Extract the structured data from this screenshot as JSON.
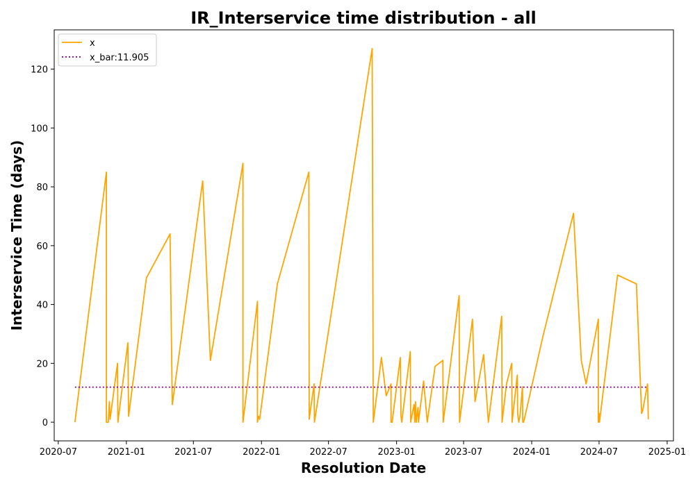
{
  "chart_data": {
    "type": "line",
    "title": "IR_Interservice time distribution - all",
    "xlabel": "Resolution Date",
    "ylabel": "Interservice Time (days)",
    "xlim": [
      "2020-06-20",
      "2025-01-18"
    ],
    "ylim": [
      -6.35,
      133.35
    ],
    "x_ticks": [
      "2020-07",
      "2021-01",
      "2021-07",
      "2022-01",
      "2022-07",
      "2023-01",
      "2023-07",
      "2024-01",
      "2024-07",
      "2025-01"
    ],
    "y_ticks": [
      0,
      20,
      40,
      60,
      80,
      100,
      120
    ],
    "grid": false,
    "legend": "upper left",
    "colors": {
      "x": "#FFA500",
      "x_bar": "#800080"
    },
    "series": [
      {
        "name": "x",
        "style": "solid",
        "points": [
          [
            "2020-08-15",
            0
          ],
          [
            "2020-11-08",
            85
          ],
          [
            "2020-11-08",
            0
          ],
          [
            "2020-11-13",
            0
          ],
          [
            "2020-11-16",
            7
          ],
          [
            "2020-11-18",
            1
          ],
          [
            "2020-12-08",
            20
          ],
          [
            "2020-12-09",
            0
          ],
          [
            "2021-01-05",
            27
          ],
          [
            "2021-01-07",
            2
          ],
          [
            "2021-02-24",
            49
          ],
          [
            "2021-04-29",
            64
          ],
          [
            "2021-05-05",
            6
          ],
          [
            "2021-07-26",
            82
          ],
          [
            "2021-08-16",
            21
          ],
          [
            "2021-11-12",
            88
          ],
          [
            "2021-11-12",
            0
          ],
          [
            "2021-12-21",
            41
          ],
          [
            "2021-12-21",
            0
          ],
          [
            "2021-12-24",
            2
          ],
          [
            "2021-12-27",
            1
          ],
          [
            "2022-02-13",
            47
          ],
          [
            "2022-05-09",
            85
          ],
          [
            "2022-05-10",
            1
          ],
          [
            "2022-05-23",
            13
          ],
          [
            "2022-05-24",
            0
          ],
          [
            "2022-10-27",
            127
          ],
          [
            "2022-10-30",
            0
          ],
          [
            "2022-11-21",
            22
          ],
          [
            "2022-12-04",
            9
          ],
          [
            "2022-12-17",
            13
          ],
          [
            "2022-12-17",
            0
          ],
          [
            "2022-12-20",
            0
          ],
          [
            "2023-01-11",
            22
          ],
          [
            "2023-01-13",
            2
          ],
          [
            "2023-01-15",
            0
          ],
          [
            "2023-02-07",
            24
          ],
          [
            "2023-02-08",
            0
          ],
          [
            "2023-02-17",
            6
          ],
          [
            "2023-02-19",
            0
          ],
          [
            "2023-02-21",
            7
          ],
          [
            "2023-02-23",
            0
          ],
          [
            "2023-02-28",
            5
          ],
          [
            "2023-03-01",
            0
          ],
          [
            "2023-03-15",
            14
          ],
          [
            "2023-03-25",
            0
          ],
          [
            "2023-03-27",
            2
          ],
          [
            "2023-04-15",
            19
          ],
          [
            "2023-05-06",
            21
          ],
          [
            "2023-05-07",
            0
          ],
          [
            "2023-06-19",
            43
          ],
          [
            "2023-06-20",
            0
          ],
          [
            "2023-07-25",
            35
          ],
          [
            "2023-08-01",
            7
          ],
          [
            "2023-08-24",
            23
          ],
          [
            "2023-09-06",
            0
          ],
          [
            "2023-10-12",
            36
          ],
          [
            "2023-10-13",
            0
          ],
          [
            "2023-10-25",
            13
          ],
          [
            "2023-11-08",
            20
          ],
          [
            "2023-11-09",
            0
          ],
          [
            "2023-11-23",
            16
          ],
          [
            "2023-11-24",
            3
          ],
          [
            "2023-11-27",
            0
          ],
          [
            "2023-11-30",
            2
          ],
          [
            "2023-12-01",
            3
          ],
          [
            "2023-12-07",
            12
          ],
          [
            "2023-12-08",
            0
          ],
          [
            "2023-12-10",
            0
          ],
          [
            "2023-12-14",
            2
          ],
          [
            "2024-01-31",
            29
          ],
          [
            "2024-04-23",
            71
          ],
          [
            "2024-05-14",
            21
          ],
          [
            "2024-05-27",
            13
          ],
          [
            "2024-06-29",
            35
          ],
          [
            "2024-06-29",
            0
          ],
          [
            "2024-07-01",
            3
          ],
          [
            "2024-07-02",
            0
          ],
          [
            "2024-08-20",
            50
          ],
          [
            "2024-10-10",
            47
          ],
          [
            "2024-10-24",
            3
          ],
          [
            "2024-10-27",
            4
          ],
          [
            "2024-11-09",
            13
          ],
          [
            "2024-11-11",
            1
          ]
        ]
      },
      {
        "name": "x_bar:11.905",
        "style": "dotted",
        "points": [
          [
            "2020-08-15",
            11.905
          ],
          [
            "2024-11-11",
            11.905
          ]
        ]
      }
    ]
  }
}
